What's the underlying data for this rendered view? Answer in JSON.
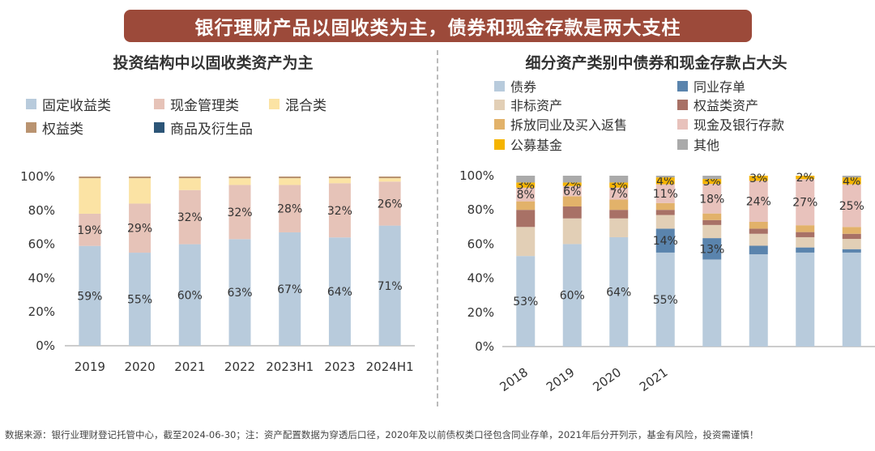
{
  "banner": "银行理财产品以固收类为主，债券和现金存款是两大支柱",
  "footer": "数据来源：银行业理财登记托管中心，截至2024-06-30；注：资产配置数据为穿透后口径，2020年及以前债权类口径包含同业存单，2021年后分开列示，基金有风险，投资需谨慎！",
  "chart_data": [
    {
      "type": "bar",
      "stacked": true,
      "title": "投资结构中以固收类资产为主",
      "categories": [
        "2019",
        "2020",
        "2021",
        "2022",
        "2023H1",
        "2023",
        "2024H1"
      ],
      "ylim": [
        0,
        100
      ],
      "yticks": [
        "0%",
        "20%",
        "40%",
        "60%",
        "80%",
        "100%"
      ],
      "series": [
        {
          "name": "固定收益类",
          "color": "#b8cbdc",
          "values": [
            59,
            55,
            60,
            63,
            67,
            64,
            71
          ],
          "labels": [
            "59%",
            "55%",
            "60%",
            "63%",
            "67%",
            "64%",
            "71%"
          ]
        },
        {
          "name": "现金管理类",
          "color": "#e6c3b8",
          "values": [
            19,
            29,
            32,
            32,
            28,
            32,
            26
          ],
          "labels": [
            "19%",
            "29%",
            "32%",
            "32%",
            "28%",
            "32%",
            "26%"
          ]
        },
        {
          "name": "混合类",
          "color": "#fbe3a4",
          "values": [
            21,
            15,
            7,
            4,
            4,
            3,
            2
          ],
          "labels": [
            "",
            "",
            "",
            "",
            "",
            "",
            ""
          ]
        },
        {
          "name": "权益类",
          "color": "#b99370",
          "values": [
            1,
            1,
            1,
            1,
            1,
            1,
            1
          ],
          "labels": [
            "",
            "",
            "",
            "",
            "",
            "",
            ""
          ]
        },
        {
          "name": "商品及衍生品",
          "color": "#2c5577",
          "values": [
            0,
            0,
            0,
            0,
            0,
            0,
            0
          ],
          "labels": [
            "",
            "",
            "",
            "",
            "",
            "",
            ""
          ]
        }
      ]
    },
    {
      "type": "bar",
      "stacked": true,
      "title": "细分资产类别中债券和现金存款占大头",
      "categories": [
        "2018",
        "2019",
        "2020",
        "2021",
        "",
        "",
        "",
        ""
      ],
      "ylim": [
        0,
        100
      ],
      "yticks": [
        "0%",
        "20%",
        "40%",
        "60%",
        "80%",
        "100%"
      ],
      "series": [
        {
          "name": "债券",
          "color": "#b8cbdc",
          "values": [
            53,
            60,
            64,
            55,
            53,
            54,
            55,
            55
          ],
          "labels": [
            "53%",
            "60%",
            "64%",
            "55%",
            "",
            "",
            "",
            ""
          ]
        },
        {
          "name": "同业存单",
          "color": "#5a84ad",
          "values": [
            0,
            0,
            0,
            14,
            13,
            5,
            3,
            2
          ],
          "labels": [
            "",
            "",
            "",
            "14%",
            "13%",
            "",
            "",
            ""
          ]
        },
        {
          "name": "非标资产",
          "color": "#e2cfb6",
          "values": [
            17,
            15,
            11,
            8,
            8,
            7,
            6,
            6
          ],
          "labels": [
            "",
            "",
            "",
            "",
            "",
            "",
            "",
            ""
          ]
        },
        {
          "name": "权益类资产",
          "color": "#a87166",
          "values": [
            10,
            7,
            5,
            3,
            3,
            3,
            3,
            3
          ],
          "labels": [
            "",
            "",
            "",
            "",
            "",
            "",
            "",
            ""
          ]
        },
        {
          "name": "拆放同业及买入返售",
          "color": "#e2b26a",
          "values": [
            5,
            6,
            6,
            4,
            4,
            4,
            4,
            4
          ],
          "labels": [
            "",
            "",
            "",
            "",
            "",
            "",
            "",
            ""
          ]
        },
        {
          "name": "现金及银行存款",
          "color": "#e8c2bc",
          "values": [
            8,
            6,
            7,
            11,
            18,
            24,
            27,
            25
          ],
          "labels": [
            "8%",
            "6%",
            "7%",
            "11%",
            "18%",
            "24%",
            "27%",
            "25%"
          ]
        },
        {
          "name": "公募基金",
          "color": "#f5b400",
          "values": [
            3,
            2,
            3,
            4,
            3,
            3,
            2,
            4
          ],
          "labels": [
            "3%",
            "2%",
            "3%",
            "4%",
            "3%",
            "3%",
            "2%",
            "4%"
          ]
        },
        {
          "name": "其他",
          "color": "#aaaaaa",
          "values": [
            4,
            4,
            4,
            1,
            2,
            0,
            0,
            1
          ],
          "labels": [
            "",
            "",
            "",
            "",
            "",
            "",
            "",
            ""
          ]
        }
      ]
    }
  ]
}
